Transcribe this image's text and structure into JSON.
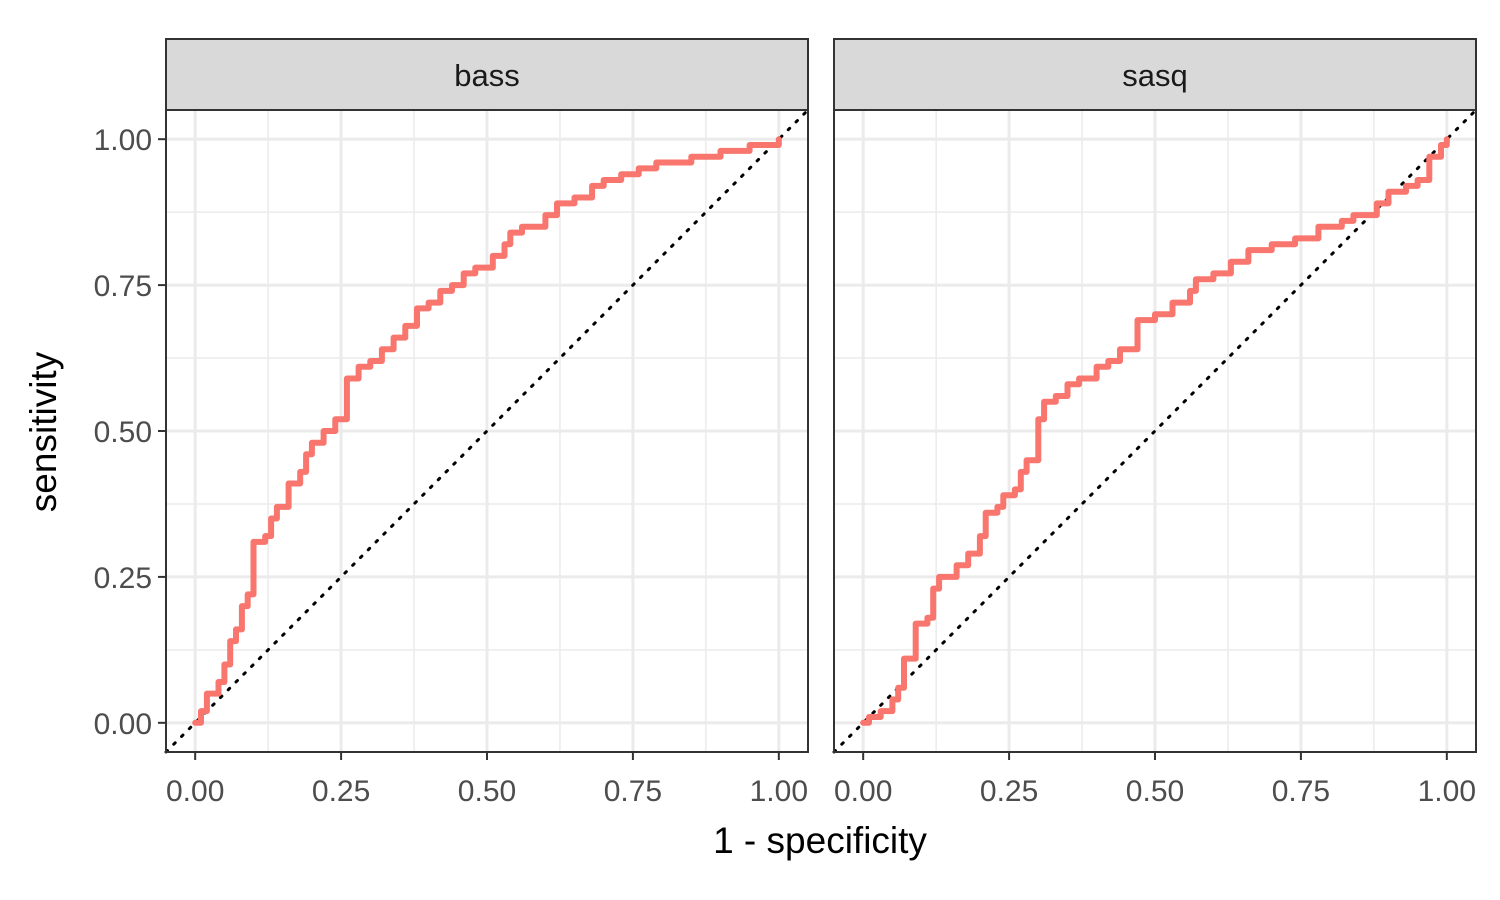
{
  "chart_data": {
    "type": "line",
    "xlabel": "1 - specificity",
    "ylabel": "sensitivity",
    "xlim": [
      -0.05,
      1.05
    ],
    "ylim": [
      -0.05,
      1.05
    ],
    "x_ticks": [
      "0.00",
      "0.25",
      "0.50",
      "0.75",
      "1.00"
    ],
    "y_ticks": [
      "0.00",
      "0.25",
      "0.50",
      "0.75",
      "1.00"
    ],
    "x_tick_values": [
      0,
      0.25,
      0.5,
      0.75,
      1
    ],
    "y_tick_values": [
      0,
      0.25,
      0.5,
      0.75,
      1
    ],
    "grid": true,
    "curve_color": "#F8766D",
    "reference_line": {
      "style": "dotted",
      "color": "#000000",
      "from": [
        -0.05,
        -0.05
      ],
      "to": [
        1.05,
        1.05
      ]
    },
    "panels": [
      {
        "label": "bass",
        "points": [
          [
            0,
            0
          ],
          [
            0.01,
            0.02
          ],
          [
            0.02,
            0.05
          ],
          [
            0.04,
            0.07
          ],
          [
            0.05,
            0.1
          ],
          [
            0.06,
            0.14
          ],
          [
            0.07,
            0.16
          ],
          [
            0.08,
            0.2
          ],
          [
            0.09,
            0.22
          ],
          [
            0.1,
            0.27
          ],
          [
            0.1,
            0.31
          ],
          [
            0.12,
            0.32
          ],
          [
            0.13,
            0.35
          ],
          [
            0.14,
            0.37
          ],
          [
            0.16,
            0.41
          ],
          [
            0.18,
            0.43
          ],
          [
            0.19,
            0.46
          ],
          [
            0.2,
            0.48
          ],
          [
            0.22,
            0.5
          ],
          [
            0.24,
            0.52
          ],
          [
            0.26,
            0.55
          ],
          [
            0.26,
            0.59
          ],
          [
            0.28,
            0.61
          ],
          [
            0.3,
            0.62
          ],
          [
            0.32,
            0.64
          ],
          [
            0.34,
            0.66
          ],
          [
            0.36,
            0.68
          ],
          [
            0.38,
            0.71
          ],
          [
            0.4,
            0.72
          ],
          [
            0.42,
            0.74
          ],
          [
            0.44,
            0.75
          ],
          [
            0.46,
            0.77
          ],
          [
            0.48,
            0.78
          ],
          [
            0.51,
            0.8
          ],
          [
            0.53,
            0.82
          ],
          [
            0.54,
            0.84
          ],
          [
            0.56,
            0.85
          ],
          [
            0.6,
            0.87
          ],
          [
            0.62,
            0.89
          ],
          [
            0.65,
            0.9
          ],
          [
            0.68,
            0.92
          ],
          [
            0.7,
            0.93
          ],
          [
            0.73,
            0.94
          ],
          [
            0.76,
            0.95
          ],
          [
            0.79,
            0.96
          ],
          [
            0.85,
            0.97
          ],
          [
            0.9,
            0.98
          ],
          [
            0.95,
            0.99
          ],
          [
            1.0,
            1.0
          ]
        ]
      },
      {
        "label": "sasq",
        "points": [
          [
            0,
            0
          ],
          [
            0.01,
            0.01
          ],
          [
            0.03,
            0.02
          ],
          [
            0.05,
            0.04
          ],
          [
            0.06,
            0.06
          ],
          [
            0.07,
            0.06
          ],
          [
            0.07,
            0.11
          ],
          [
            0.09,
            0.12
          ],
          [
            0.09,
            0.17
          ],
          [
            0.11,
            0.18
          ],
          [
            0.12,
            0.23
          ],
          [
            0.13,
            0.25
          ],
          [
            0.16,
            0.27
          ],
          [
            0.18,
            0.29
          ],
          [
            0.2,
            0.32
          ],
          [
            0.21,
            0.36
          ],
          [
            0.23,
            0.37
          ],
          [
            0.24,
            0.39
          ],
          [
            0.26,
            0.4
          ],
          [
            0.27,
            0.43
          ],
          [
            0.28,
            0.45
          ],
          [
            0.3,
            0.47
          ],
          [
            0.3,
            0.52
          ],
          [
            0.31,
            0.55
          ],
          [
            0.33,
            0.56
          ],
          [
            0.35,
            0.58
          ],
          [
            0.37,
            0.59
          ],
          [
            0.4,
            0.61
          ],
          [
            0.42,
            0.62
          ],
          [
            0.44,
            0.64
          ],
          [
            0.47,
            0.66
          ],
          [
            0.47,
            0.69
          ],
          [
            0.5,
            0.7
          ],
          [
            0.53,
            0.72
          ],
          [
            0.56,
            0.74
          ],
          [
            0.57,
            0.76
          ],
          [
            0.6,
            0.77
          ],
          [
            0.63,
            0.79
          ],
          [
            0.66,
            0.81
          ],
          [
            0.7,
            0.82
          ],
          [
            0.74,
            0.83
          ],
          [
            0.78,
            0.85
          ],
          [
            0.82,
            0.86
          ],
          [
            0.84,
            0.87
          ],
          [
            0.88,
            0.89
          ],
          [
            0.9,
            0.91
          ],
          [
            0.93,
            0.92
          ],
          [
            0.95,
            0.93
          ],
          [
            0.97,
            0.94
          ],
          [
            0.97,
            0.97
          ],
          [
            0.99,
            0.99
          ],
          [
            1.0,
            1.0
          ]
        ]
      }
    ]
  }
}
